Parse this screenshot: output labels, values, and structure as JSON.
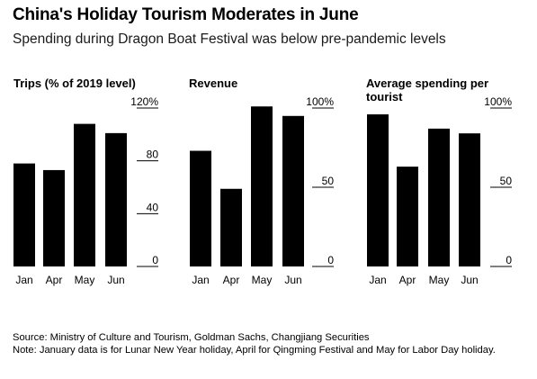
{
  "header": {
    "title": "China's Holiday Tourism Moderates in June",
    "subtitle": "Spending during Dragon Boat Festival was below pre-pandemic levels"
  },
  "chart_data": [
    {
      "type": "bar",
      "title": "Trips (% of 2019 level)",
      "categories": [
        "Jan",
        "Apr",
        "May",
        "Jun"
      ],
      "values": [
        78,
        73,
        108,
        101
      ],
      "ylim": [
        0,
        120
      ],
      "yticks": [
        0,
        40,
        80,
        120
      ],
      "ytick_labels": [
        "0",
        "40",
        "80",
        "120%"
      ],
      "grid": false
    },
    {
      "type": "bar",
      "title": "Revenue",
      "categories": [
        "Jan",
        "Apr",
        "May",
        "Jun"
      ],
      "values": [
        73,
        49,
        101,
        95
      ],
      "ylim": [
        0,
        100
      ],
      "yticks": [
        0,
        50,
        100
      ],
      "ytick_labels": [
        "0",
        "50",
        "100%"
      ],
      "grid": false
    },
    {
      "type": "bar",
      "title": "Average spending per tourist",
      "categories": [
        "Jan",
        "Apr",
        "May",
        "Jun"
      ],
      "values": [
        96,
        63,
        87,
        84
      ],
      "ylim": [
        0,
        100
      ],
      "yticks": [
        0,
        50,
        100
      ],
      "ytick_labels": [
        "0",
        "50",
        "100%"
      ],
      "grid": false
    }
  ],
  "footer": {
    "source": "Source: Ministry of Culture and Tourism, Goldman Sachs, Changjiang Securities",
    "note": "Note: January data is for Lunar New Year holiday, April for Qingming Festival and May for Labor Day holiday."
  }
}
